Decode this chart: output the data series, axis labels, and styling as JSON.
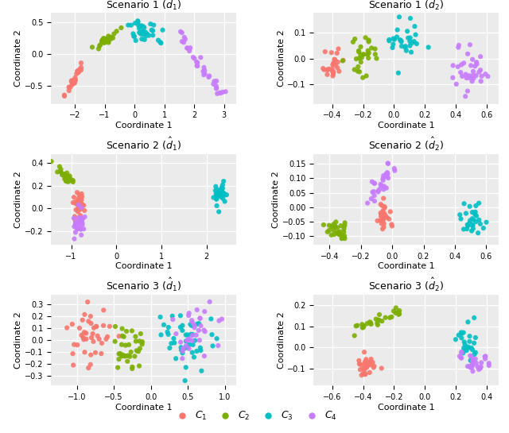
{
  "colors": {
    "C1": "#F8766D",
    "C2": "#7CAE00",
    "C3": "#00BFC4",
    "C4": "#C77CFF"
  },
  "titles": [
    "Scenario 1 ($\\hat{d}_1$)",
    "Scenario 1 ($\\hat{d}_2$)",
    "Scenario 2 ($\\hat{d}_1$)",
    "Scenario 2 ($\\hat{d}_2$)",
    "Scenario 3 ($\\hat{d}_1$)",
    "Scenario 3 ($\\hat{d}_2$)"
  ],
  "background_color": "#EBEBEB",
  "point_size": 20,
  "alpha": 0.9,
  "plot_configs": [
    {
      "xlim": [
        -2.8,
        3.4
      ],
      "ylim": [
        -0.78,
        0.65
      ],
      "xticks": [
        -2,
        -1,
        0,
        1,
        2,
        3
      ],
      "yticks": [
        -0.5,
        0.0,
        0.5
      ]
    },
    {
      "xlim": [
        -0.52,
        0.68
      ],
      "ylim": [
        -0.175,
        0.175
      ],
      "xticks": [
        -0.4,
        -0.2,
        0.0,
        0.2,
        0.4,
        0.6
      ],
      "yticks": [
        -0.1,
        0.0,
        0.1
      ]
    },
    {
      "xlim": [
        -1.45,
        2.65
      ],
      "ylim": [
        -0.32,
        0.48
      ],
      "xticks": [
        -1,
        0,
        1,
        2
      ],
      "yticks": [
        -0.2,
        0.0,
        0.2,
        0.4
      ]
    },
    {
      "xlim": [
        -0.5,
        0.68
      ],
      "ylim": [
        -0.13,
        0.185
      ],
      "xticks": [
        -0.4,
        -0.2,
        0.0,
        0.2,
        0.4,
        0.6
      ],
      "yticks": [
        -0.1,
        -0.05,
        0.0,
        0.05,
        0.1,
        0.15
      ]
    },
    {
      "xlim": [
        -1.35,
        1.15
      ],
      "ylim": [
        -0.38,
        0.38
      ],
      "xticks": [
        -1.0,
        -0.5,
        0.0,
        0.5,
        1.0
      ],
      "yticks": [
        -0.3,
        -0.2,
        -0.1,
        0.0,
        0.1,
        0.2,
        0.3
      ]
    },
    {
      "xlim": [
        -0.72,
        0.48
      ],
      "ylim": [
        -0.18,
        0.25
      ],
      "xticks": [
        -0.6,
        -0.4,
        -0.2,
        0.0,
        0.2,
        0.4
      ],
      "yticks": [
        -0.1,
        0.0,
        0.1,
        0.2
      ]
    }
  ]
}
